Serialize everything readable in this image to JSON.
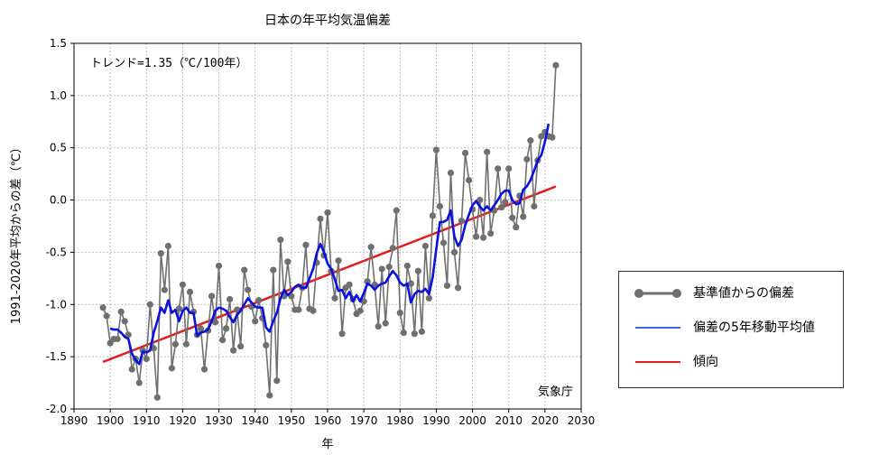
{
  "chart_data": {
    "type": "line",
    "title": "日本の年平均気温偏差",
    "xlabel": "年",
    "ylabel": "1991-2020年平均からの差（℃）",
    "annotation": "トレンド=1.35（℃/100年）",
    "credit": "気象庁",
    "xlim": [
      1890,
      2030
    ],
    "ylim": [
      -2.0,
      1.5
    ],
    "xticks": [
      "1890",
      "1900",
      "1910",
      "1920",
      "1930",
      "1940",
      "1950",
      "1960",
      "1970",
      "1980",
      "1990",
      "2000",
      "2010",
      "2020",
      "2030"
    ],
    "yticks": [
      "-2.0",
      "-1.5",
      "-1.0",
      "-0.5",
      "0.0",
      "0.5",
      "1.0",
      "1.5"
    ],
    "grid": true,
    "legend_position": "outside-right",
    "colors": {
      "anomaly": "#6f6f6f",
      "moving_average": "#0a10e0",
      "trend": "#e51c1c"
    },
    "series": [
      {
        "name": "基準値からの偏差",
        "x": [
          1898,
          1899,
          1900,
          1901,
          1902,
          1903,
          1904,
          1905,
          1906,
          1907,
          1908,
          1909,
          1910,
          1911,
          1912,
          1913,
          1914,
          1915,
          1916,
          1917,
          1918,
          1919,
          1920,
          1921,
          1922,
          1923,
          1924,
          1925,
          1926,
          1927,
          1928,
          1929,
          1930,
          1931,
          1932,
          1933,
          1934,
          1935,
          1936,
          1937,
          1938,
          1939,
          1940,
          1941,
          1942,
          1943,
          1944,
          1945,
          1946,
          1947,
          1948,
          1949,
          1950,
          1951,
          1952,
          1953,
          1954,
          1955,
          1956,
          1957,
          1958,
          1959,
          1960,
          1961,
          1962,
          1963,
          1964,
          1965,
          1966,
          1967,
          1968,
          1969,
          1970,
          1971,
          1972,
          1973,
          1974,
          1975,
          1976,
          1977,
          1978,
          1979,
          1980,
          1981,
          1982,
          1983,
          1984,
          1985,
          1986,
          1987,
          1988,
          1989,
          1990,
          1991,
          1992,
          1993,
          1994,
          1995,
          1996,
          1997,
          1998,
          1999,
          2000,
          2001,
          2002,
          2003,
          2004,
          2005,
          2006,
          2007,
          2008,
          2009,
          2010,
          2011,
          2012,
          2013,
          2014,
          2015,
          2016,
          2017,
          2018,
          2019,
          2020,
          2021,
          2022,
          2023
        ],
        "values": [
          -1.03,
          -1.11,
          -1.37,
          -1.33,
          -1.33,
          -1.07,
          -1.16,
          -1.29,
          -1.62,
          -1.52,
          -1.75,
          -1.44,
          -1.52,
          -1.0,
          -1.42,
          -1.89,
          -0.51,
          -0.86,
          -0.44,
          -1.61,
          -1.38,
          -1.04,
          -0.81,
          -1.38,
          -0.88,
          -1.07,
          -1.29,
          -1.23,
          -1.62,
          -1.25,
          -0.92,
          -1.17,
          -0.63,
          -1.34,
          -1.23,
          -0.95,
          -1.44,
          -1.05,
          -1.4,
          -0.67,
          -0.86,
          -1.02,
          -1.16,
          -0.96,
          -1.13,
          -1.39,
          -1.87,
          -0.67,
          -1.73,
          -0.38,
          -0.92,
          -0.59,
          -0.92,
          -1.05,
          -1.05,
          -0.84,
          -0.43,
          -1.04,
          -1.06,
          -0.6,
          -0.18,
          -0.53,
          -0.12,
          -0.68,
          -0.94,
          -0.58,
          -1.28,
          -0.84,
          -0.81,
          -0.95,
          -1.09,
          -1.06,
          -0.97,
          -0.78,
          -0.45,
          -0.81,
          -1.21,
          -0.66,
          -1.18,
          -0.64,
          -0.46,
          -0.1,
          -1.08,
          -1.27,
          -0.63,
          -0.8,
          -1.28,
          -0.68,
          -1.26,
          -0.44,
          -0.94,
          -0.15,
          0.48,
          -0.06,
          -0.41,
          -0.82,
          0.26,
          -0.5,
          -0.84,
          -0.2,
          0.45,
          0.19,
          -0.09,
          -0.35,
          0.0,
          -0.36,
          0.46,
          -0.32,
          -0.1,
          0.3,
          -0.07,
          -0.02,
          0.3,
          -0.17,
          -0.26,
          0.04,
          -0.16,
          0.39,
          0.57,
          -0.06,
          0.38,
          0.61,
          0.65,
          0.61,
          0.6,
          1.29
        ]
      },
      {
        "name": "偏差の5年移動平均値",
        "x": [
          1900,
          1901,
          1902,
          1903,
          1904,
          1905,
          1906,
          1907,
          1908,
          1909,
          1910,
          1911,
          1912,
          1913,
          1914,
          1915,
          1916,
          1917,
          1918,
          1919,
          1920,
          1921,
          1922,
          1923,
          1924,
          1925,
          1926,
          1927,
          1928,
          1929,
          1930,
          1931,
          1932,
          1933,
          1934,
          1935,
          1936,
          1937,
          1938,
          1939,
          1940,
          1941,
          1942,
          1943,
          1944,
          1945,
          1946,
          1947,
          1948,
          1949,
          1950,
          1951,
          1952,
          1953,
          1954,
          1955,
          1956,
          1957,
          1958,
          1959,
          1960,
          1961,
          1962,
          1963,
          1964,
          1965,
          1966,
          1967,
          1968,
          1969,
          1970,
          1971,
          1972,
          1973,
          1974,
          1975,
          1976,
          1977,
          1978,
          1979,
          1980,
          1981,
          1982,
          1983,
          1984,
          1985,
          1986,
          1987,
          1988,
          1989,
          1990,
          1991,
          1992,
          1993,
          1994,
          1995,
          1996,
          1997,
          1998,
          1999,
          2000,
          2001,
          2002,
          2003,
          2004,
          2005,
          2006,
          2007,
          2008,
          2009,
          2010,
          2011,
          2012,
          2013,
          2014,
          2015,
          2016,
          2017,
          2018,
          2019,
          2020,
          2021
        ],
        "values": [
          -1.23,
          -1.24,
          -1.24,
          -1.27,
          -1.31,
          -1.33,
          -1.47,
          -1.53,
          -1.57,
          -1.45,
          -1.46,
          -1.44,
          -1.27,
          -1.16,
          -1.03,
          -1.08,
          -0.96,
          -1.08,
          -1.05,
          -1.16,
          -1.06,
          -1.03,
          -1.08,
          -1.08,
          -1.3,
          -1.27,
          -1.26,
          -1.24,
          -1.16,
          -1.06,
          -1.03,
          -1.04,
          -1.06,
          -1.12,
          -1.17,
          -1.1,
          -1.06,
          -1.0,
          -0.94,
          -0.98,
          -1.02,
          -1.03,
          -1.03,
          -1.22,
          -1.26,
          -1.16,
          -1.08,
          -0.94,
          -0.86,
          -0.91,
          -0.88,
          -0.83,
          -0.81,
          -0.84,
          -0.84,
          -0.75,
          -0.66,
          -0.51,
          -0.42,
          -0.5,
          -0.61,
          -0.66,
          -0.76,
          -0.87,
          -0.86,
          -0.94,
          -0.88,
          -0.97,
          -0.91,
          -0.97,
          -0.89,
          -0.8,
          -0.82,
          -0.86,
          -0.82,
          -0.8,
          -0.79,
          -0.73,
          -0.68,
          -0.72,
          -0.79,
          -0.82,
          -0.8,
          -0.98,
          -0.9,
          -0.87,
          -0.88,
          -0.85,
          -0.9,
          -0.74,
          -0.47,
          -0.21,
          -0.21,
          -0.19,
          -0.1,
          -0.35,
          -0.44,
          -0.38,
          -0.24,
          -0.14,
          -0.05,
          -0.01,
          -0.06,
          -0.1,
          -0.06,
          -0.1,
          -0.05,
          0.0,
          0.06,
          0.09,
          0.09,
          0.0,
          -0.04,
          -0.03,
          0.1,
          0.13,
          0.19,
          0.28,
          0.38,
          0.43,
          0.56,
          0.73
        ]
      },
      {
        "name": "傾向",
        "x": [
          1898,
          2023
        ],
        "values": [
          -1.55,
          0.13
        ]
      }
    ]
  }
}
